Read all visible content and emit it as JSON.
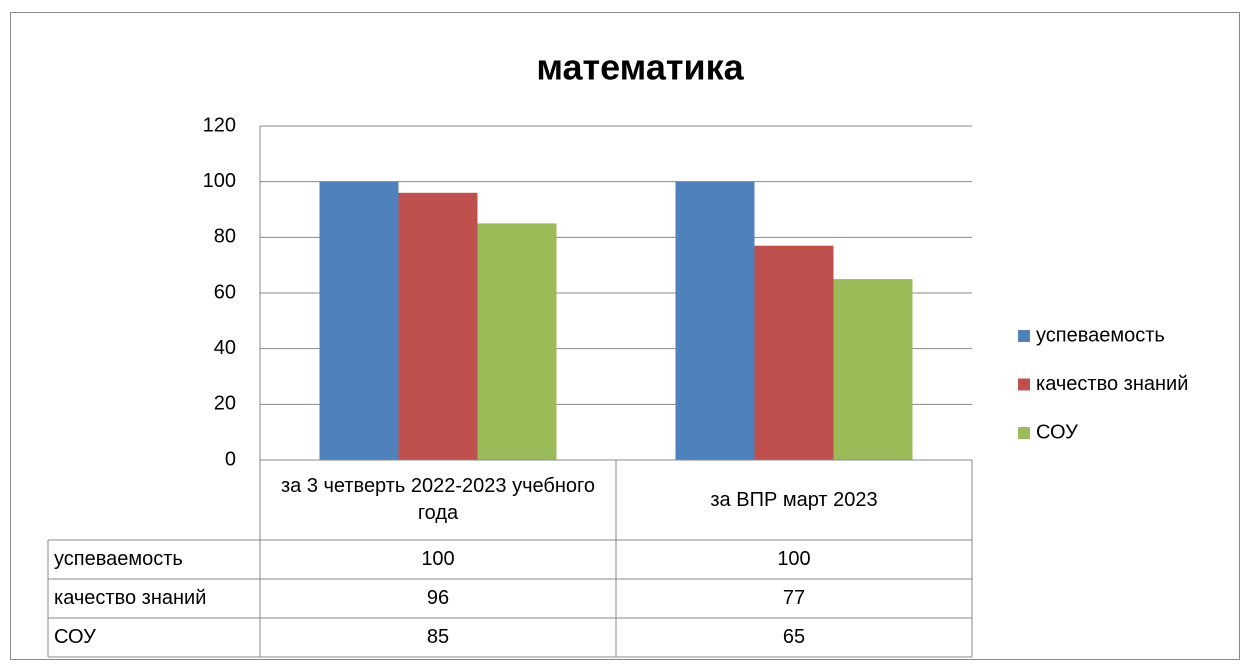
{
  "chart_data": {
    "type": "bar",
    "title": "математика",
    "categories": [
      "за 3 четверть 2022-2023 учебного года",
      "за ВПР март 2023"
    ],
    "series": [
      {
        "name": "успеваемость",
        "color": "#4f81bd",
        "values": [
          100,
          100
        ]
      },
      {
        "name": "качество знаний",
        "color": "#c0504d",
        "values": [
          96,
          77
        ]
      },
      {
        "name": "СОУ",
        "color": "#9bbb59",
        "values": [
          85,
          65
        ]
      }
    ],
    "ylim": [
      0,
      120
    ],
    "yticks": [
      0,
      20,
      40,
      60,
      80,
      100,
      120
    ],
    "grid": true,
    "legend": "right"
  }
}
